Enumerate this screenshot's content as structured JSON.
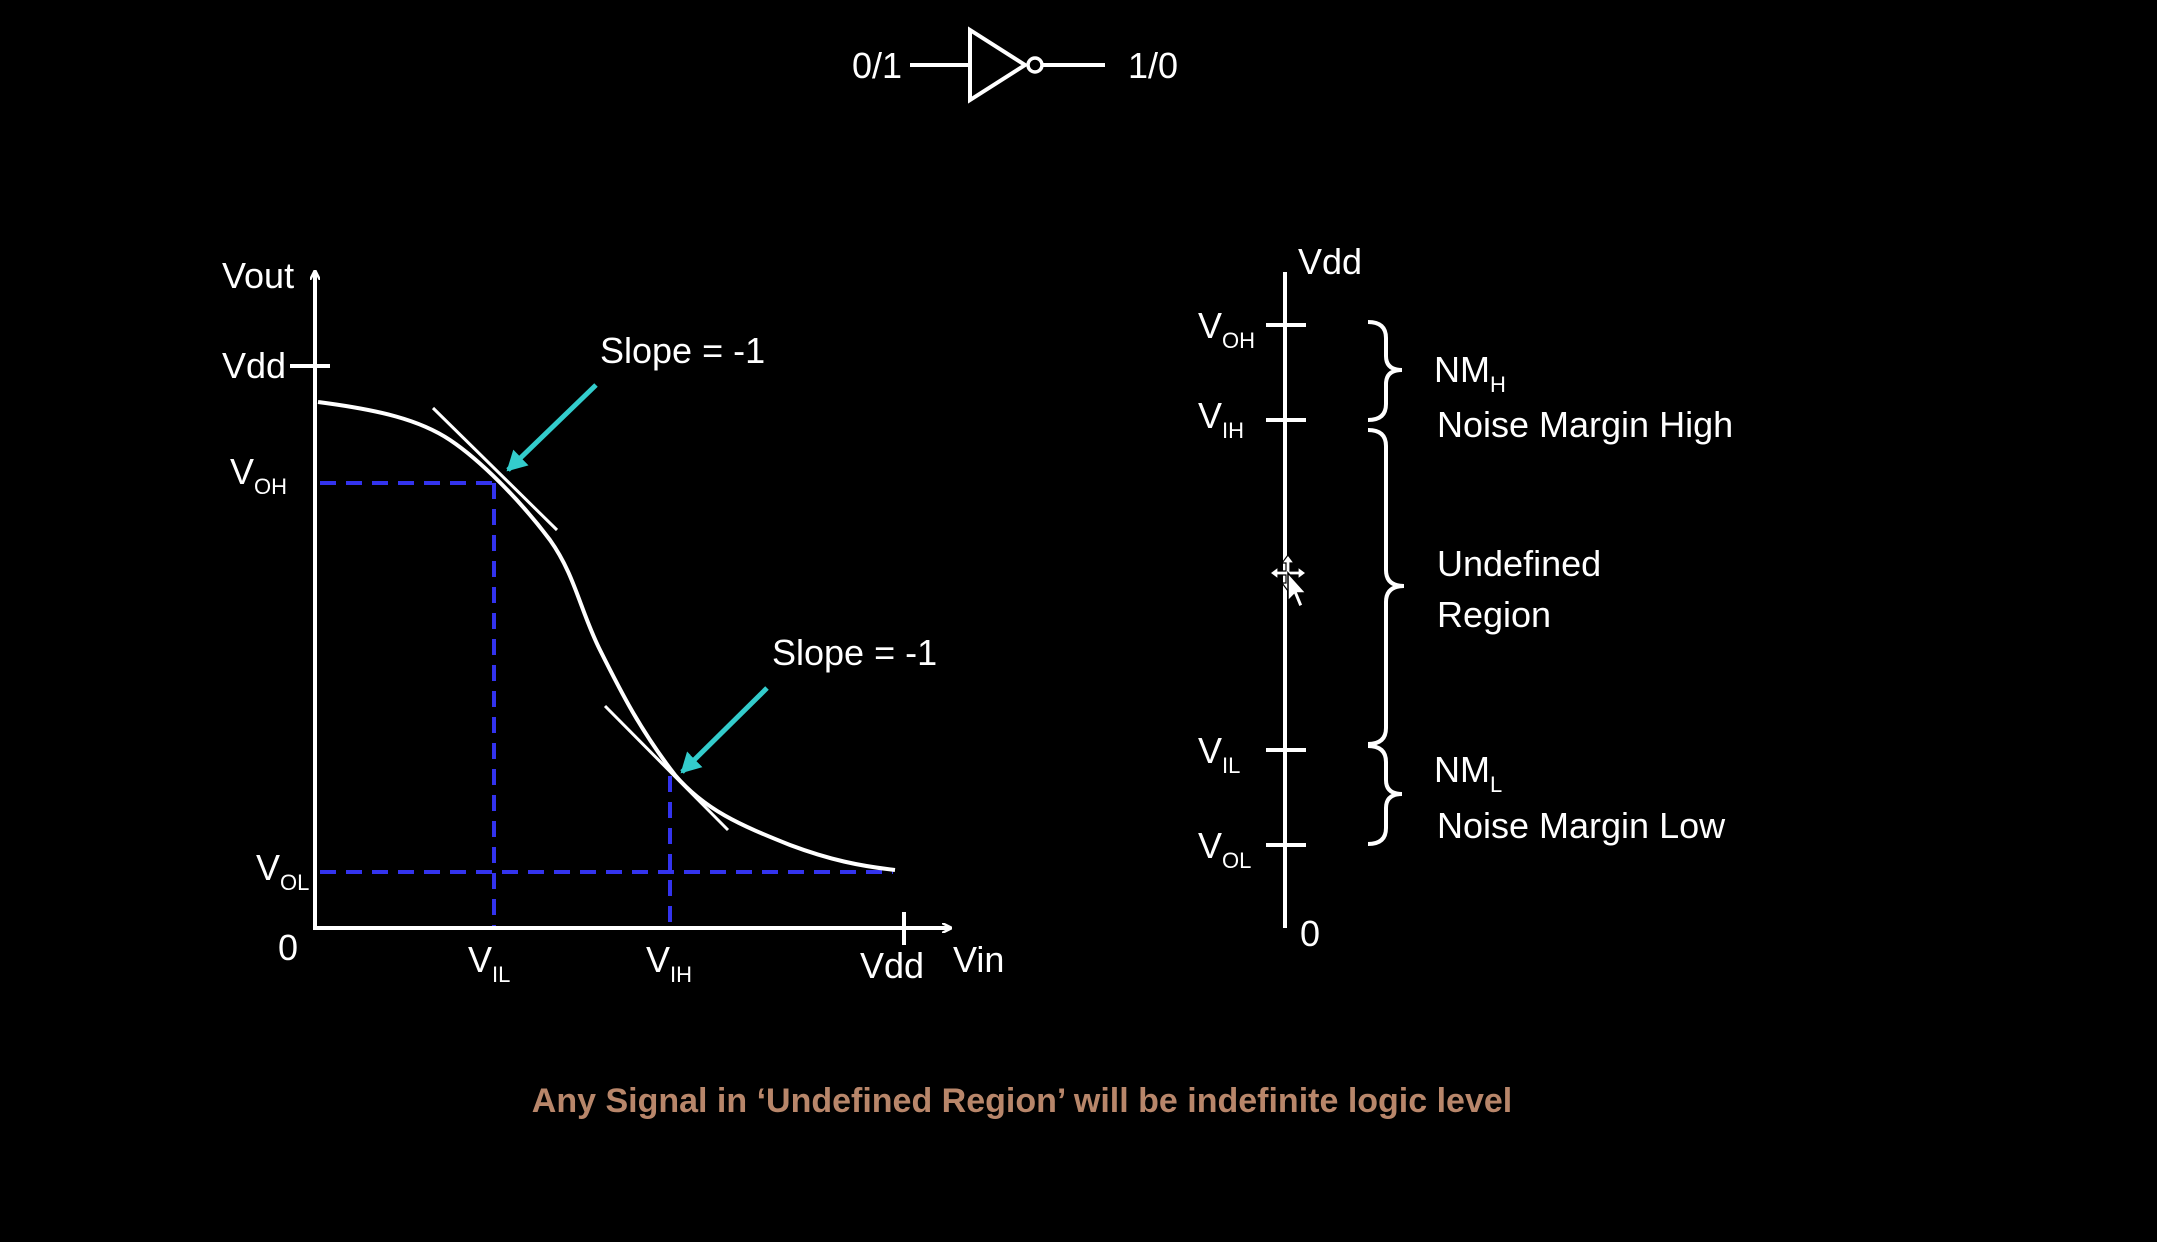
{
  "colors": {
    "background": "#000000",
    "line": "#ffffff",
    "dashed": "#3333ee",
    "arrow": "#33cccc",
    "caption": "#b8866a"
  },
  "gate": {
    "input": "0/1",
    "output": "1/0"
  },
  "vtc": {
    "y_axis": "Vout",
    "x_axis": "Vin",
    "origin": "0",
    "vdd_y": "Vdd",
    "vdd_x": "Vdd",
    "voh": {
      "main": "V",
      "sub": "OH"
    },
    "vol": {
      "main": "V",
      "sub": "OL"
    },
    "vil": {
      "main": "V",
      "sub": "IL"
    },
    "vih": {
      "main": "V",
      "sub": "IH"
    },
    "slope_upper": "Slope = -1",
    "slope_lower": "Slope = -1"
  },
  "scale": {
    "top": "Vdd",
    "bottom": "0",
    "voh": {
      "main": "V",
      "sub": "OH"
    },
    "vih": {
      "main": "V",
      "sub": "IH"
    },
    "vil": {
      "main": "V",
      "sub": "IL"
    },
    "vol": {
      "main": "V",
      "sub": "OL"
    },
    "nmh": {
      "main": "NM",
      "sub": "H"
    },
    "nmh_desc": "Noise Margin High",
    "undefined_line1": "Undefined",
    "undefined_line2": "Region",
    "nml": {
      "main": "NM",
      "sub": "L"
    },
    "nml_desc": "Noise Margin Low"
  },
  "caption": "Any Signal in ‘Undefined Region’ will be indefinite logic level",
  "icons": {
    "cursor": "move-cursor-icon",
    "gate": "not-gate-icon"
  }
}
